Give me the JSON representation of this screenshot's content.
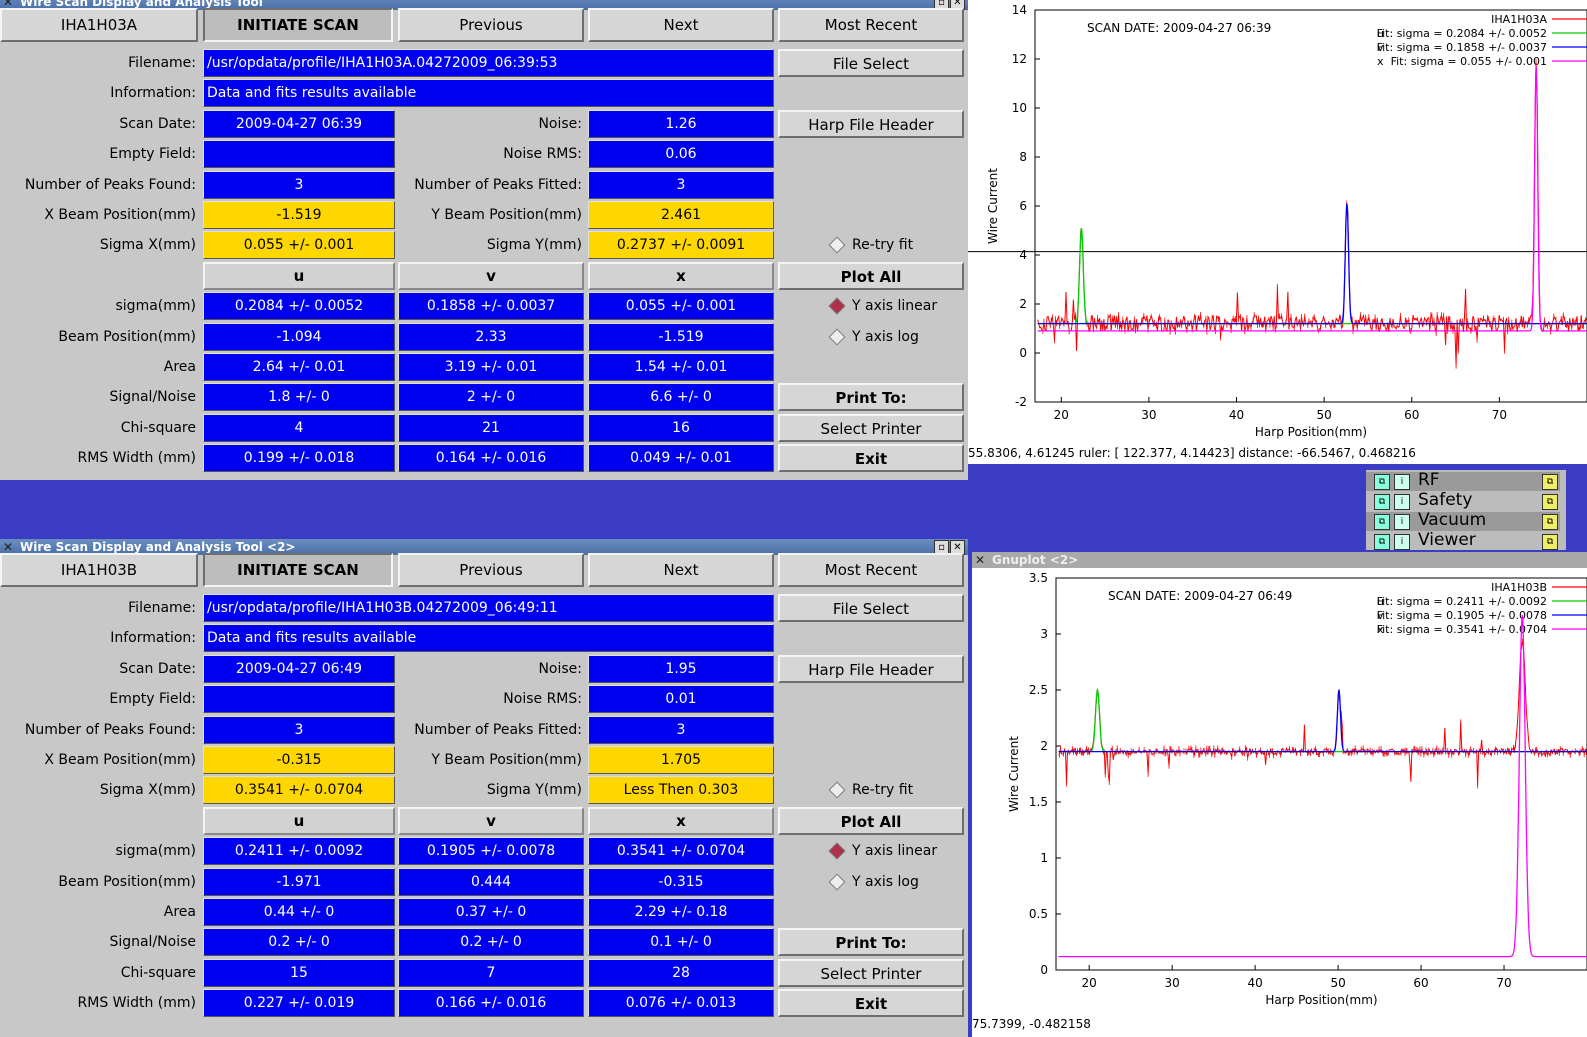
{
  "windows": [
    {
      "title": "Wire Scan Display and Analysis Tool",
      "harp": "IHA1H03A",
      "buttons": {
        "initiate": "INITIATE SCAN",
        "previous": "Previous",
        "next": "Next",
        "recent": "Most Recent",
        "file_select": "File Select",
        "harp_header": "Harp File Header",
        "plot_all": "Plot All",
        "print_to": "Print To:",
        "select_printer": "Select Printer",
        "exit": "Exit"
      },
      "labels": {
        "filename": "Filename:",
        "information": "Information:",
        "scan_date": "Scan Date:",
        "noise": "Noise:",
        "empty_field": "Empty Field:",
        "noise_rms": "Noise RMS:",
        "peaks_found": "Number of Peaks Found:",
        "peaks_fitted": "Number of Peaks Fitted:",
        "x_beam": "X Beam Position(mm)",
        "y_beam": "Y Beam Position(mm)",
        "sigma_x": "Sigma X(mm)",
        "sigma_y": "Sigma Y(mm)",
        "retry": "Re-try fit",
        "y_linear": "Y axis linear",
        "y_log": "Y axis log"
      },
      "filename": "/usr/opdata/profile/IHA1H03A.04272009_06:39:53",
      "information": "Data and fits results available",
      "scan_date": "2009-04-27   06:39",
      "noise": "1.26",
      "empty_field": "",
      "noise_rms": "0.06",
      "peaks_found": "3",
      "peaks_fitted": "3",
      "x_beam": "-1.519",
      "y_beam": "2.461",
      "sigma_x": "0.055 +/- 0.001",
      "sigma_y": "0.2737 +/- 0.0091",
      "table": {
        "headers": [
          "u",
          "v",
          "x"
        ],
        "rows": [
          {
            "label": "sigma(mm)",
            "values": [
              "0.2084 +/- 0.0052",
              "0.1858 +/- 0.0037",
              "0.055 +/- 0.001"
            ]
          },
          {
            "label": "Beam Position(mm)",
            "values": [
              "-1.094",
              "2.33",
              "-1.519"
            ]
          },
          {
            "label": "Area",
            "values": [
              "2.64 +/- 0.01",
              "3.19 +/- 0.01",
              "1.54 +/- 0.01"
            ]
          },
          {
            "label": "Signal/Noise",
            "values": [
              "1.8 +/- 0",
              "2 +/- 0",
              "6.6 +/- 0"
            ]
          },
          {
            "label": "Chi-square",
            "values": [
              "4",
              "21",
              "16"
            ]
          },
          {
            "label": "RMS Width (mm)",
            "values": [
              "0.199 +/- 0.018",
              "0.164 +/- 0.016",
              "0.049 +/- 0.01"
            ]
          }
        ]
      },
      "y_axis_mode": "linear"
    },
    {
      "title": "Wire Scan Display and Analysis Tool <2>",
      "harp": "IHA1H03B",
      "buttons": {
        "initiate": "INITIATE SCAN",
        "previous": "Previous",
        "next": "Next",
        "recent": "Most Recent",
        "file_select": "File Select",
        "harp_header": "Harp File Header",
        "plot_all": "Plot All",
        "print_to": "Print To:",
        "select_printer": "Select Printer",
        "exit": "Exit"
      },
      "labels": {
        "filename": "Filename:",
        "information": "Information:",
        "scan_date": "Scan Date:",
        "noise": "Noise:",
        "empty_field": "Empty Field:",
        "noise_rms": "Noise RMS:",
        "peaks_found": "Number of Peaks Found:",
        "peaks_fitted": "Number of Peaks Fitted:",
        "x_beam": "X Beam Position(mm)",
        "y_beam": "Y Beam Position(mm)",
        "sigma_x": "Sigma X(mm)",
        "sigma_y": "Sigma Y(mm)",
        "retry": "Re-try fit",
        "y_linear": "Y axis linear",
        "y_log": "Y axis log"
      },
      "filename": "/usr/opdata/profile/IHA1H03B.04272009_06:49:11",
      "information": "Data and fits results available",
      "scan_date": "2009-04-27   06:49",
      "noise": "1.95",
      "empty_field": "",
      "noise_rms": "0.01",
      "peaks_found": "3",
      "peaks_fitted": "3",
      "x_beam": "-0.315",
      "y_beam": "1.705",
      "sigma_x": "0.3541 +/- 0.0704",
      "sigma_y": "Less Then 0.303",
      "table": {
        "headers": [
          "u",
          "v",
          "x"
        ],
        "rows": [
          {
            "label": "sigma(mm)",
            "values": [
              "0.2411 +/- 0.0092",
              "0.1905 +/- 0.0078",
              "0.3541 +/- 0.0704"
            ]
          },
          {
            "label": "Beam Position(mm)",
            "values": [
              "-1.971",
              "0.444",
              "-0.315"
            ]
          },
          {
            "label": "Area",
            "values": [
              "0.44 +/- 0",
              "0.37 +/- 0",
              "2.29 +/- 0.18"
            ]
          },
          {
            "label": "Signal/Noise",
            "values": [
              "0.2 +/- 0",
              "0.2 +/- 0",
              "0.1 +/- 0"
            ]
          },
          {
            "label": "Chi-square",
            "values": [
              "15",
              "7",
              "28"
            ]
          },
          {
            "label": "RMS Width (mm)",
            "values": [
              "0.227 +/- 0.019",
              "0.166 +/- 0.016",
              "0.076 +/- 0.013"
            ]
          }
        ]
      },
      "y_axis_mode": "linear"
    }
  ],
  "plots": [
    {
      "title": "",
      "status": "55.8306,  4.61245  ruler: [ 122.377,  4.14423]  distance: -66.5467,  0.468216",
      "scan_date": "SCAN DATE: 2009-04-27    06:39",
      "xlabel": "Harp Position(mm)",
      "ylabel": "Wire Current",
      "xticks": [
        20,
        30,
        40,
        50,
        60,
        70
      ],
      "yticks": [
        -2,
        0,
        2,
        4,
        6,
        8,
        10,
        12,
        14
      ],
      "xlim": [
        17,
        80
      ],
      "ylim": [
        -2,
        14
      ],
      "ruler_y": 4.14,
      "legend": [
        {
          "sym": "",
          "text": "IHA1H03A",
          "color": "#ff0000"
        },
        {
          "sym": "u",
          "text": "Fit: sigma = 0.2084 +/- 0.0052",
          "color": "#00cc00"
        },
        {
          "sym": "v",
          "text": "Fit: sigma = 0.1858 +/- 0.0037",
          "color": "#0000ff"
        },
        {
          "sym": "x",
          "text": "Fit: sigma = 0.055 +/- 0.001",
          "color": "#ff00ff"
        }
      ],
      "chart_data": {
        "type": "line",
        "baseline": 1.2,
        "peaks": [
          {
            "name": "u",
            "center": 22.3,
            "height": 3.9,
            "sigma": 0.2084,
            "color": "#00cc00"
          },
          {
            "name": "v",
            "center": 52.6,
            "height": 4.9,
            "sigma": 0.1858,
            "color": "#0000ff"
          },
          {
            "name": "x",
            "center": 74.2,
            "height": 10.8,
            "sigma": 0.055,
            "color": "#ff00ff"
          }
        ],
        "x_fit_baseline": 0.9
      }
    },
    {
      "title": "Gnuplot <2>",
      "status": "75.7399, -0.482158",
      "scan_date": "SCAN DATE: 2009-04-27    06:49",
      "xlabel": "Harp Position(mm)",
      "ylabel": "Wire Current",
      "xticks": [
        20,
        30,
        40,
        50,
        60,
        70
      ],
      "yticks": [
        0,
        0.5,
        1,
        1.5,
        2,
        2.5,
        3,
        3.5
      ],
      "xlim": [
        16,
        80
      ],
      "ylim": [
        0,
        3.5
      ],
      "legend": [
        {
          "sym": "",
          "text": "IHA1H03B",
          "color": "#ff0000"
        },
        {
          "sym": "u",
          "text": "Fit: sigma = 0.2411 +/- 0.0092",
          "color": "#00cc00"
        },
        {
          "sym": "v",
          "text": "Fit: sigma = 0.1905 +/- 0.0078",
          "color": "#0000ff"
        },
        {
          "sym": "x",
          "text": "Fit: sigma = 0.3541 +/- 0.0704",
          "color": "#ff00ff"
        }
      ],
      "chart_data": {
        "type": "line",
        "baseline": 1.95,
        "peaks": [
          {
            "name": "u",
            "center": 21.0,
            "height": 0.55,
            "sigma": 0.2411,
            "color": "#00cc00"
          },
          {
            "name": "v",
            "center": 50.1,
            "height": 0.55,
            "sigma": 0.1905,
            "color": "#0000ff"
          },
          {
            "name": "x",
            "center": 72.2,
            "height": 1.0,
            "sigma": 0.3541,
            "color": "#ff00ff"
          }
        ],
        "x_fit_baseline": 0.12,
        "x_fit_height": 3.05
      }
    }
  ],
  "nav": {
    "items": [
      {
        "label": "RF",
        "selected": true
      },
      {
        "label": "Safety",
        "selected": false
      },
      {
        "label": "Vacuum",
        "selected": true
      },
      {
        "label": "Viewer",
        "selected": false
      }
    ]
  },
  "colors": {
    "field_blue": "#0000f0",
    "field_yellow": "#ffd700",
    "desktop": "#3a3dc4"
  }
}
